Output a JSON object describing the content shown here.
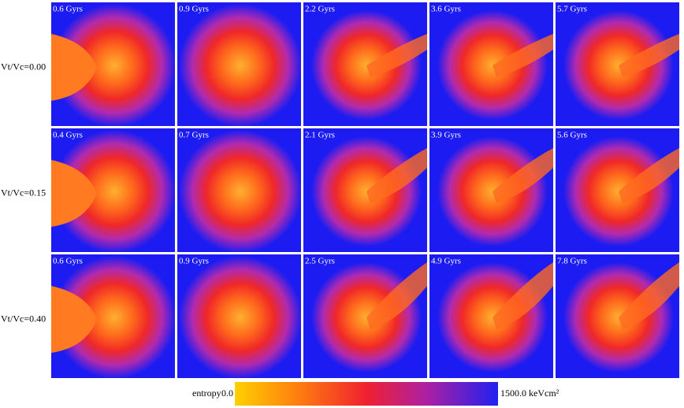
{
  "rows": [
    {
      "label": "Vt/Vc=0.00",
      "panels": [
        "0.6 Gyrs",
        "0.9 Gyrs",
        "2.2 Gyrs",
        "3.6 Gyrs",
        "5.7 Gyrs"
      ]
    },
    {
      "label": "Vt/Vc=0.15",
      "panels": [
        "0.4 Gyrs",
        "0.7 Gyrs",
        "2.1 Gyrs",
        "3.9 Gyrs",
        "5.6 Gyrs"
      ]
    },
    {
      "label": "Vt/Vc=0.40",
      "panels": [
        "0.6 Gyrs",
        "0.9 Gyrs",
        "2.5 Gyrs",
        "4.9 Gyrs",
        "7.8 Gyrs"
      ]
    }
  ],
  "colorbar": {
    "label": "entropy",
    "min_label": "0.0",
    "max_label": "1500.0 keVcm²"
  }
}
